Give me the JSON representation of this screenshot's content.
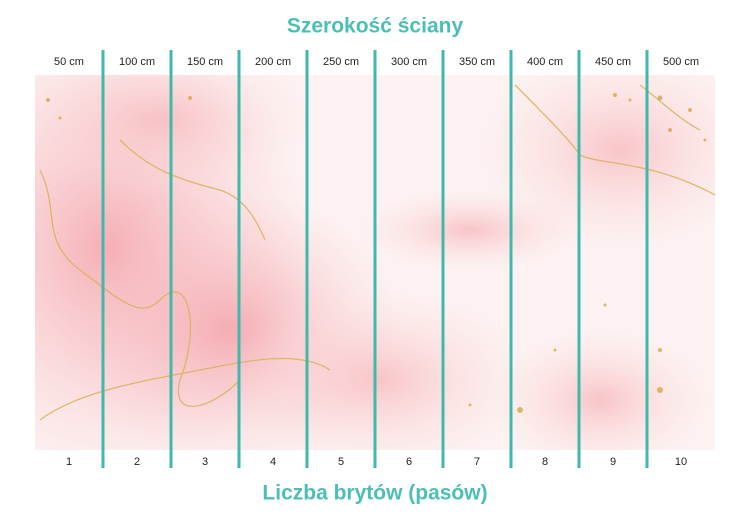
{
  "header": {
    "title": "Szerokość ściany"
  },
  "widths": [
    "50 cm",
    "100 cm",
    "150 cm",
    "200 cm",
    "250 cm",
    "300 cm",
    "350 cm",
    "400 cm",
    "450 cm",
    "500 cm"
  ],
  "strips": [
    "1",
    "2",
    "3",
    "4",
    "5",
    "6",
    "7",
    "8",
    "9",
    "10"
  ],
  "footer": {
    "title": "Liczba brytów (pasów)"
  }
}
